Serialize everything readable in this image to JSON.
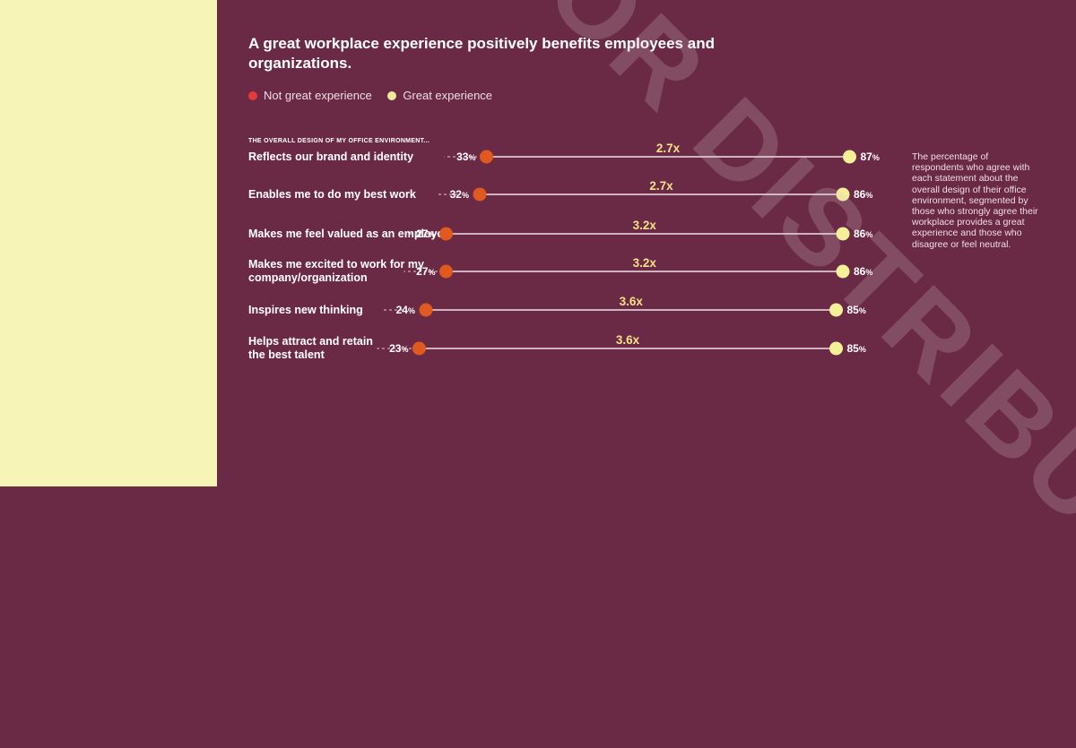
{
  "title": "A great workplace experience positively benefits employees and organizations.",
  "legend": [
    {
      "label": "Not great experience",
      "color": "#e53a3a"
    },
    {
      "label": "Great experience",
      "color": "#eeea9a"
    }
  ],
  "section_label": "THE OVERALL DESIGN OF MY OFFICE ENVIRONMENT...",
  "note": "The percentage of respondents who agree with each statement about the overall design of their office environment, segmented by those who strongly agree their workplace provides a great experience and those who disagree or feel neutral.",
  "watermark": "NOT FOR DISTRIBUTION",
  "colors": {
    "background": "#6a2a45",
    "side_panel": "#f7f4b8",
    "not_great": "#e05a20",
    "great": "#f5ef98",
    "multiplier": "#f5e08a"
  },
  "chart_data": {
    "type": "dumbbell",
    "series": [
      {
        "name": "Not great experience"
      },
      {
        "name": "Great experience"
      }
    ],
    "unit": "%",
    "rows": [
      {
        "label": [
          "Reflects our brand and identity"
        ],
        "not_great": 33,
        "great": 87,
        "multiplier": "2.7x"
      },
      {
        "label": [
          "Enables me to do my best work"
        ],
        "not_great": 32,
        "great": 86,
        "multiplier": "2.7x"
      },
      {
        "label": [
          "Makes me feel valued as an employee"
        ],
        "not_great": 27,
        "great": 86,
        "multiplier": "3.2x"
      },
      {
        "label": [
          "Makes me excited to work for my",
          "company/organization"
        ],
        "not_great": 27,
        "great": 86,
        "multiplier": "3.2x"
      },
      {
        "label": [
          "Inspires new thinking"
        ],
        "not_great": 24,
        "great": 85,
        "multiplier": "3.6x"
      },
      {
        "label": [
          "Helps attract and retain",
          "the best talent"
        ],
        "not_great": 23,
        "great": 85,
        "multiplier": "3.6x"
      }
    ]
  }
}
